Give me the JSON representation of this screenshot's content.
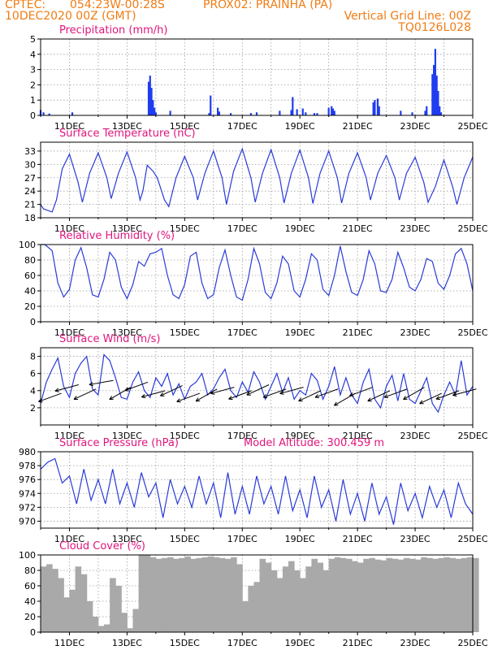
{
  "header": {
    "source": "CPTEC:",
    "coords": "054:23W-00:28S",
    "station": "PROX02: PRAINHA (PA)",
    "datetime": "10DEC2020 00Z (GMT)",
    "grid_note": "Vertical Grid Line: 00Z",
    "code": "TQ0126L028"
  },
  "colors": {
    "header_text": "#f07c14",
    "panel_title": "#e0147c",
    "series_line": "#2a3bd8",
    "bar_fill": "#1f3cf0",
    "cloud_fill": "#a9a9a9",
    "wind_arrow": "#000000",
    "grid": "#9a9a9a"
  },
  "x_axis": {
    "days": [
      "11DEC",
      "13DEC",
      "15DEC",
      "17DEC",
      "19DEC",
      "21DEC",
      "23DEC",
      "25DEC"
    ],
    "start_day": 10,
    "end_day": 25,
    "grid": "dotted vertical lines at 00Z of every day"
  },
  "chart_data": [
    {
      "type": "bar",
      "title": "Precipitation (mm/h)",
      "ylim": [
        0,
        5
      ],
      "yticks": [
        0,
        1,
        2,
        3,
        4,
        5
      ],
      "x_unit": "day of December 2020",
      "x": [
        10.0,
        10.1,
        10.3,
        11.1,
        13.75,
        13.8,
        13.85,
        13.9,
        13.95,
        14.0,
        14.5,
        15.85,
        15.9,
        16.15,
        16.2,
        16.6,
        17.3,
        17.5,
        18.3,
        18.7,
        18.75,
        18.9,
        19.1,
        19.2,
        19.5,
        19.6,
        20.0,
        20.1,
        20.15,
        20.2,
        21.55,
        21.6,
        21.7,
        21.75,
        22.5,
        22.9,
        23.35,
        23.4,
        23.6,
        23.65,
        23.7,
        23.75,
        23.8,
        23.85,
        23.9
      ],
      "values": [
        0.35,
        0.2,
        0.12,
        0.2,
        2.2,
        2.6,
        1.8,
        1.0,
        0.5,
        0.2,
        0.3,
        0.15,
        1.3,
        0.5,
        0.25,
        0.15,
        0.15,
        0.2,
        0.3,
        0.35,
        1.2,
        0.4,
        0.45,
        0.2,
        0.15,
        0.15,
        0.5,
        0.6,
        0.45,
        0.3,
        0.85,
        1.0,
        1.1,
        0.6,
        0.3,
        0.2,
        0.3,
        0.6,
        2.7,
        3.3,
        4.35,
        2.6,
        1.6,
        0.6,
        0.2
      ]
    },
    {
      "type": "line",
      "title": "Surface Temperature (nC)",
      "ylim": [
        18,
        35
      ],
      "yticks": [
        18,
        21,
        24,
        27,
        30,
        33
      ],
      "series": [
        {
          "x": [
            10.0,
            10.1,
            10.4,
            10.55,
            10.75,
            11.0,
            11.3,
            11.45,
            11.7,
            12.0,
            12.3,
            12.45,
            12.7,
            13.0,
            13.3,
            13.45,
            13.55,
            13.7,
            13.9,
            14.05,
            14.3,
            14.45,
            14.7,
            15.0,
            15.3,
            15.45,
            15.7,
            16.0,
            16.3,
            16.45,
            16.7,
            17.0,
            17.3,
            17.45,
            17.7,
            18.0,
            18.3,
            18.45,
            18.7,
            19.0,
            19.3,
            19.45,
            19.7,
            20.0,
            20.3,
            20.45,
            20.7,
            21.0,
            21.3,
            21.45,
            21.7,
            22.0,
            22.3,
            22.45,
            22.7,
            23.0,
            23.3,
            23.45,
            23.7,
            24.0,
            24.3,
            24.45,
            24.7,
            25.0
          ],
          "values": [
            21,
            20,
            19.3,
            22,
            29,
            32.3,
            26,
            21.5,
            28,
            32.6,
            27,
            22.3,
            28,
            32.8,
            27,
            22,
            24,
            29.8,
            28.5,
            27,
            22,
            20.5,
            27,
            31.8,
            27,
            22,
            28,
            33,
            27,
            21,
            28.5,
            33.5,
            27,
            21.5,
            28,
            33.3,
            27,
            21.3,
            28,
            33.2,
            27,
            21.2,
            28,
            33.0,
            27,
            21.3,
            28,
            32.6,
            27,
            22,
            28,
            32.0,
            27,
            22,
            28,
            31.6,
            26,
            21.5,
            25,
            31.0,
            25,
            21,
            27,
            31.7
          ]
        }
      ]
    },
    {
      "type": "line",
      "title": "Relative Humidity (%)",
      "ylim": [
        0,
        100
      ],
      "yticks": [
        0,
        20,
        40,
        60,
        80,
        100
      ],
      "series": [
        {
          "x": [
            10.0,
            10.15,
            10.4,
            10.6,
            10.8,
            11.0,
            11.2,
            11.4,
            11.6,
            11.8,
            12.0,
            12.2,
            12.4,
            12.6,
            12.8,
            13.0,
            13.2,
            13.4,
            13.6,
            13.8,
            14.0,
            14.2,
            14.4,
            14.6,
            14.8,
            15.0,
            15.2,
            15.4,
            15.6,
            15.8,
            16.0,
            16.2,
            16.4,
            16.6,
            16.8,
            17.0,
            17.2,
            17.4,
            17.6,
            17.8,
            18.0,
            18.2,
            18.4,
            18.6,
            18.8,
            19.0,
            19.2,
            19.4,
            19.6,
            19.8,
            20.0,
            20.2,
            20.4,
            20.6,
            20.8,
            21.0,
            21.2,
            21.4,
            21.6,
            21.8,
            22.0,
            22.2,
            22.4,
            22.6,
            22.8,
            23.0,
            23.2,
            23.4,
            23.6,
            23.8,
            24.0,
            24.2,
            24.4,
            24.6,
            24.8,
            25.0
          ],
          "values": [
            100,
            100,
            92,
            50,
            32,
            42,
            80,
            96,
            70,
            35,
            32,
            55,
            90,
            80,
            45,
            30,
            48,
            78,
            72,
            88,
            90,
            95,
            60,
            35,
            30,
            48,
            85,
            90,
            50,
            30,
            35,
            70,
            93,
            60,
            32,
            28,
            55,
            95,
            75,
            38,
            30,
            50,
            85,
            75,
            40,
            32,
            55,
            88,
            80,
            42,
            34,
            60,
            98,
            65,
            38,
            34,
            55,
            92,
            75,
            40,
            38,
            55,
            90,
            70,
            45,
            40,
            55,
            82,
            78,
            50,
            42,
            60,
            88,
            95,
            75,
            40
          ]
        }
      ]
    },
    {
      "type": "line",
      "title": "Surface Wind (m/s)",
      "ylim": [
        0,
        9
      ],
      "yticks": [
        2,
        4,
        6,
        8
      ],
      "series": [
        {
          "x": [
            10.0,
            10.2,
            10.4,
            10.6,
            10.8,
            11.0,
            11.2,
            11.4,
            11.6,
            11.8,
            12.0,
            12.2,
            12.4,
            12.6,
            12.8,
            13.0,
            13.2,
            13.4,
            13.6,
            13.8,
            14.0,
            14.2,
            14.4,
            14.6,
            14.8,
            15.0,
            15.2,
            15.4,
            15.6,
            15.8,
            16.0,
            16.2,
            16.4,
            16.6,
            16.8,
            17.0,
            17.2,
            17.4,
            17.6,
            17.8,
            18.0,
            18.2,
            18.4,
            18.6,
            18.8,
            19.0,
            19.2,
            19.4,
            19.6,
            19.8,
            20.0,
            20.2,
            20.4,
            20.6,
            20.8,
            21.0,
            21.2,
            21.4,
            21.6,
            21.8,
            22.0,
            22.2,
            22.4,
            22.6,
            22.8,
            23.0,
            23.2,
            23.4,
            23.6,
            23.8,
            24.0,
            24.2,
            24.4,
            24.6,
            24.8,
            25.0
          ],
          "values": [
            2.5,
            5,
            6.5,
            7.8,
            4.5,
            3.2,
            6.0,
            7.2,
            8.0,
            4.2,
            3.5,
            8.2,
            7.5,
            5.5,
            3.2,
            3.0,
            5.0,
            6.2,
            4.0,
            3.2,
            5.5,
            4.5,
            6.0,
            3.5,
            4.8,
            3.0,
            4.5,
            5.0,
            6.0,
            3.5,
            4.2,
            5.5,
            6.5,
            4.0,
            3.2,
            5.0,
            3.8,
            6.2,
            5.0,
            3.0,
            4.5,
            6.0,
            3.8,
            5.5,
            3.0,
            4.0,
            3.5,
            6.0,
            5.2,
            3.0,
            4.5,
            6.8,
            3.5,
            5.5,
            3.5,
            2.5,
            5.0,
            6.5,
            3.0,
            2.0,
            4.5,
            5.8,
            2.8,
            6.0,
            3.0,
            2.5,
            4.0,
            5.5,
            2.5,
            1.5,
            3.5,
            5.0,
            3.5,
            7.5,
            3.5,
            4.5
          ]
        }
      ],
      "wind_vectors": {
        "note": "black arrows; all point toward the west-southwest",
        "x": [
          10.3,
          10.9,
          11.5,
          12.1,
          12.7,
          13.3,
          13.9,
          14.5,
          15.1,
          15.7,
          16.3,
          16.9,
          17.5,
          18.1,
          18.7,
          19.3,
          19.9,
          20.5,
          21.1,
          21.7,
          22.3,
          22.9,
          23.5,
          24.1,
          24.7
        ],
        "speed": [
          3.5,
          4.5,
          4.0,
          5.0,
          4.2,
          4.8,
          3.8,
          4.4,
          3.5,
          4.0,
          4.2,
          3.8,
          4.5,
          4.0,
          4.2,
          3.8,
          4.0,
          3.5,
          4.2,
          3.8,
          4.0,
          4.2,
          3.5,
          3.8,
          4.0
        ],
        "direction_deg": [
          70,
          75,
          65,
          80,
          60,
          70,
          75,
          65,
          70,
          60,
          75,
          70,
          65,
          70,
          75,
          65,
          70,
          60,
          70,
          65,
          70,
          60,
          65,
          70,
          75
        ]
      }
    },
    {
      "type": "line",
      "title": "Surface Pressure (hPa)",
      "annotation": "Model Altitude: 300.459 m",
      "ylim": [
        969,
        980
      ],
      "yticks": [
        970,
        972,
        974,
        976,
        978,
        980
      ],
      "series": [
        {
          "x": [
            10.0,
            10.25,
            10.5,
            10.75,
            11.0,
            11.25,
            11.5,
            11.75,
            12.0,
            12.25,
            12.5,
            12.75,
            13.0,
            13.25,
            13.5,
            13.75,
            14.0,
            14.25,
            14.5,
            14.75,
            15.0,
            15.25,
            15.5,
            15.75,
            16.0,
            16.25,
            16.5,
            16.75,
            17.0,
            17.25,
            17.5,
            17.75,
            18.0,
            18.25,
            18.5,
            18.75,
            19.0,
            19.25,
            19.5,
            19.75,
            20.0,
            20.25,
            20.5,
            20.75,
            21.0,
            21.25,
            21.5,
            21.75,
            22.0,
            22.25,
            22.5,
            22.75,
            23.0,
            23.25,
            23.5,
            23.75,
            24.0,
            24.25,
            24.5,
            24.75,
            25.0
          ],
          "values": [
            977.5,
            978.5,
            979.0,
            975.5,
            976.5,
            972.5,
            977.5,
            973.0,
            976.0,
            972.5,
            977.5,
            972.5,
            975.5,
            972.0,
            977.0,
            973.5,
            975.5,
            970.5,
            976.0,
            972.5,
            975.0,
            972.0,
            976.5,
            972.5,
            975.5,
            970.5,
            977.0,
            971.0,
            975.0,
            971.0,
            976.5,
            972.5,
            975.0,
            971.0,
            976.5,
            971.5,
            974.5,
            970.5,
            976.5,
            972.0,
            974.5,
            970.0,
            976.0,
            971.0,
            974.0,
            970.0,
            975.5,
            971.0,
            973.5,
            969.5,
            975.5,
            971.5,
            974.0,
            970.5,
            975.0,
            972.0,
            974.5,
            970.5,
            975.5,
            972.5,
            971.0
          ]
        }
      ]
    },
    {
      "type": "area",
      "title": "Cloud Cover (%)",
      "ylim": [
        0,
        100
      ],
      "yticks": [
        0,
        20,
        40,
        60,
        80,
        100
      ],
      "series": [
        {
          "x": [
            10.0,
            10.2,
            10.4,
            10.6,
            10.8,
            11.0,
            11.2,
            11.4,
            11.6,
            11.8,
            12.0,
            12.2,
            12.4,
            12.6,
            12.8,
            13.0,
            13.2,
            13.4,
            13.6,
            13.8,
            14.0,
            14.2,
            14.4,
            14.6,
            14.8,
            15.0,
            15.2,
            15.4,
            15.6,
            15.8,
            16.0,
            16.2,
            16.4,
            16.6,
            16.8,
            17.0,
            17.2,
            17.4,
            17.6,
            17.8,
            18.0,
            18.2,
            18.4,
            18.6,
            18.8,
            19.0,
            19.2,
            19.4,
            19.6,
            19.8,
            20.0,
            20.2,
            20.4,
            20.6,
            20.8,
            21.0,
            21.2,
            21.4,
            21.6,
            21.8,
            22.0,
            22.2,
            22.4,
            22.6,
            22.8,
            23.0,
            23.2,
            23.4,
            23.6,
            23.8,
            24.0,
            24.2,
            24.4,
            24.6,
            24.8,
            25.0
          ],
          "values": [
            85,
            88,
            82,
            70,
            45,
            55,
            85,
            75,
            40,
            20,
            8,
            10,
            70,
            60,
            25,
            5,
            30,
            100,
            100,
            97,
            95,
            96,
            97,
            95,
            96,
            98,
            95,
            96,
            97,
            98,
            97,
            96,
            95,
            97,
            88,
            40,
            60,
            65,
            95,
            90,
            80,
            70,
            85,
            92,
            80,
            70,
            85,
            95,
            90,
            80,
            95,
            97,
            96,
            95,
            92,
            90,
            95,
            96,
            94,
            93,
            96,
            95,
            94,
            96,
            95,
            94,
            97,
            96,
            95,
            96,
            97,
            96,
            95,
            96,
            97,
            96
          ]
        }
      ]
    }
  ]
}
